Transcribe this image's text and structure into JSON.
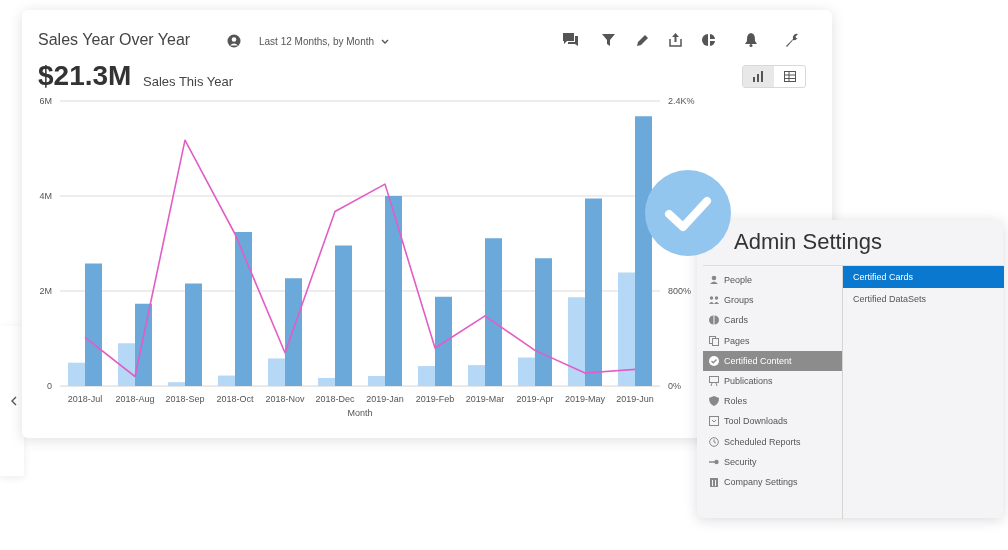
{
  "chart_data": [
    {
      "type": "bar",
      "title": "Sales Year Over Year",
      "annotations": [
        "Last 12 Months, by Month",
        "$21.3M",
        "Sales This Year"
      ],
      "xlabel": "Month",
      "categories": [
        "2018-Jul",
        "2018-Aug",
        "2018-Sep",
        "2018-Oct",
        "2018-Nov",
        "2018-Dec",
        "2019-Jan",
        "2019-Feb",
        "2019-Mar",
        "2019-Apr",
        "2019-May",
        "2019-Jun"
      ],
      "series": [
        {
          "type": "bar",
          "color": "#b5d8f6",
          "values": [
            0.49,
            0.9,
            0.08,
            0.22,
            0.58,
            0.17,
            0.21,
            0.42,
            0.44,
            0.6,
            1.87,
            2.39
          ]
        },
        {
          "type": "bar",
          "color": "#6aa9da",
          "values": [
            2.58,
            1.73,
            2.16,
            3.24,
            2.27,
            2.96,
            4.0,
            1.88,
            3.11,
            2.69,
            3.95,
            5.68
          ]
        },
        {
          "type": "line",
          "axis": "y2",
          "color": "#e35dc6",
          "values": [
            410,
            80,
            2070,
            1280,
            280,
            1470,
            1700,
            320,
            590,
            300,
            110,
            140
          ]
        }
      ],
      "ylim": [
        0,
        6
      ],
      "yticks": [
        {
          "value": 0,
          "label": "0"
        },
        {
          "value": 2,
          "label": "2M"
        },
        {
          "value": 4,
          "label": "4M"
        },
        {
          "value": 6,
          "label": "6M"
        }
      ],
      "y2lim": [
        0,
        2400
      ],
      "y2ticks": [
        {
          "value": 0,
          "label": "0%"
        },
        {
          "value": 800,
          "label": "800%"
        },
        {
          "value": 1600,
          "label": null
        },
        {
          "value": 2400,
          "label": "2.4K%"
        }
      ],
      "grid": "y",
      "marker": "none",
      "line_style": "solid"
    },
    {
      "type": "other",
      "title": "Admin Settings",
      "annotations": [
        "People",
        "Groups",
        "Cards",
        "Pages",
        "Certified Content",
        "Publications",
        "Roles",
        "Tool Downloads",
        "Scheduled Reports",
        "Security",
        "Company Settings",
        "Certified Cards",
        "Certified DataSets"
      ]
    }
  ]
}
